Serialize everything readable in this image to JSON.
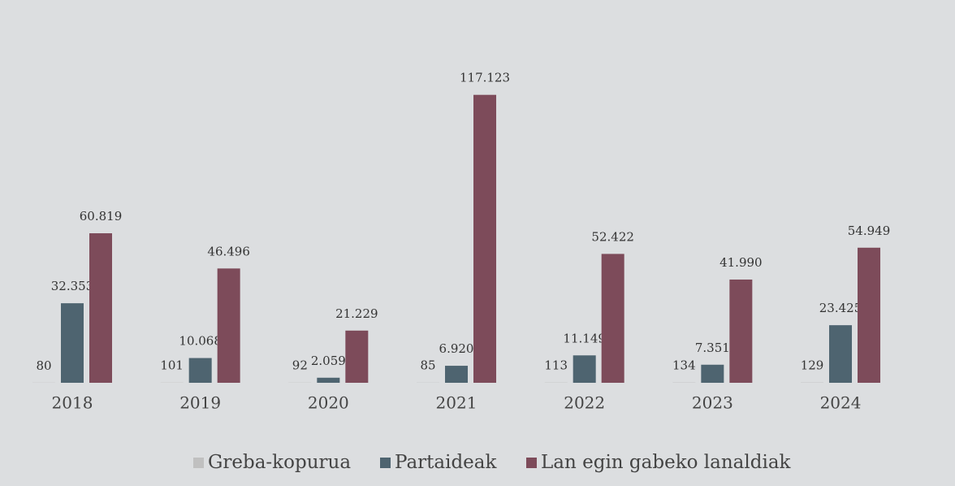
{
  "chart_data": {
    "type": "bar",
    "categories": [
      "2018",
      "2019",
      "2020",
      "2021",
      "2022",
      "2023",
      "2024"
    ],
    "series": [
      {
        "name": "Greba-kopurua",
        "color": "#c0c0c0",
        "values": [
          80,
          101,
          92,
          85,
          113,
          134,
          129
        ]
      },
      {
        "name": "Partaideak",
        "color": "#4e6470",
        "values": [
          32353,
          10068,
          2059,
          6920,
          11149,
          7351,
          23425
        ],
        "value_labels": [
          "32.353",
          "10.068",
          "2.059",
          "6.920",
          "11.149",
          "7.351",
          "23.425"
        ]
      },
      {
        "name": "Lan egin gabeko lanaldiak",
        "color": "#7d4b5a",
        "values": [
          60819,
          46496,
          21229,
          117123,
          52422,
          41990,
          54949
        ],
        "value_labels": [
          "60.819",
          "46.496",
          "21.229",
          "117.123",
          "52.422",
          "41.990",
          "54.949"
        ]
      }
    ],
    "ylim": [
      0,
      120000
    ]
  }
}
